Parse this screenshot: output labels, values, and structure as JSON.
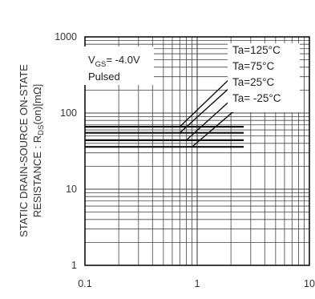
{
  "chart_data": {
    "type": "line",
    "x_scale": "log",
    "y_scale": "log",
    "xlim": [
      0.1,
      10
    ],
    "ylim": [
      1,
      1000
    ],
    "x_ticks": [
      0.1,
      1,
      10
    ],
    "y_ticks": [
      1,
      10,
      100,
      1000
    ],
    "x_tick_labels": [
      "0.1",
      "1",
      "10"
    ],
    "y_tick_labels": [
      "1",
      "10",
      "100",
      "1000"
    ],
    "xlabel": "",
    "ylabel_line1": "STATIC DRAIN-SOURCE ON-STATE",
    "ylabel_line2_prefix": "RESISTANCE : R",
    "ylabel_line2_sub": "DS",
    "ylabel_line2_suffix": "(on)[mΩ]",
    "grid": true,
    "conditions": {
      "vgs_prefix": "V",
      "vgs_sub": "GS",
      "vgs_value": "= -4.0V",
      "mode": "Pulsed"
    },
    "series": [
      {
        "name": "Ta=125°C",
        "x": [
          0.1,
          0.5,
          0.7,
          2.6
        ],
        "y": [
          66,
          66,
          66,
          66
        ],
        "rise_x": [
          0.7,
          2.5
        ],
        "rise_y": [
          66,
          400
        ]
      },
      {
        "name": "Ta=75°C",
        "x": [
          0.1,
          0.5,
          0.7,
          2.6
        ],
        "y": [
          55,
          55,
          55,
          55
        ],
        "rise_x": [
          0.7,
          2.5
        ],
        "rise_y": [
          55,
          300
        ]
      },
      {
        "name": "Ta=25°C",
        "x": [
          0.1,
          0.5,
          0.8,
          2.6
        ],
        "y": [
          44,
          44,
          44,
          44
        ],
        "rise_x": [
          0.8,
          2.5
        ],
        "rise_y": [
          44,
          200
        ]
      },
      {
        "name": "Ta= -25°C",
        "x": [
          0.1,
          0.5,
          0.9,
          2.6
        ],
        "y": [
          36,
          36,
          36,
          36
        ],
        "rise_x": [
          0.9,
          2.5
        ],
        "rise_y": [
          36,
          130
        ]
      }
    ]
  }
}
